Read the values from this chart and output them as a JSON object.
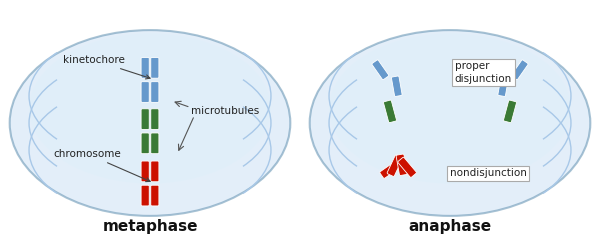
{
  "bg_color": "#ffffff",
  "cell_color": "#cce0f5",
  "cell_edge_color": "#6090b0",
  "chromosome_blue": "#6699cc",
  "chromosome_green": "#3a7a35",
  "chromosome_red": "#cc1100",
  "arc_color": "#a8c8e8",
  "label_metaphase": "metaphase",
  "label_anaphase": "anaphase",
  "label_kinetochore": "kinetochore",
  "label_chromosome": "chromosome",
  "label_microtubules": "microtubules",
  "label_proper": "proper\ndisjunction",
  "label_nondisj": "nondisjunction",
  "title_fontsize": 11,
  "annotation_fontsize": 7.5
}
